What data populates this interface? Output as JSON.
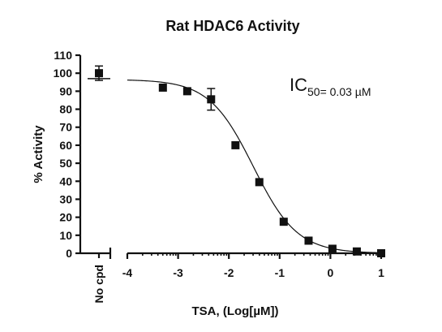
{
  "chart_data": {
    "type": "scatter",
    "title": "Rat HDAC6 Activity",
    "xlabel": "TSA, (Log[µM])",
    "ylabel": "% Activity",
    "xlim": [
      -4,
      1
    ],
    "ylim": [
      0,
      110
    ],
    "x_ticks": [
      "-4",
      "-3",
      "-2",
      "-1",
      "0",
      "1"
    ],
    "y_ticks": [
      "0",
      "10",
      "20",
      "30",
      "40",
      "50",
      "60",
      "70",
      "80",
      "90",
      "100",
      "110"
    ],
    "control": {
      "label": "No cpd",
      "value": 100,
      "error": 4,
      "mean_line": 97
    },
    "points": [
      {
        "x": -3.3,
        "y": 92,
        "error": 0
      },
      {
        "x": -2.82,
        "y": 90,
        "error": 0
      },
      {
        "x": -2.35,
        "y": 85.5,
        "error": 6
      },
      {
        "x": -1.87,
        "y": 60,
        "error": 0
      },
      {
        "x": -1.4,
        "y": 39.5,
        "error": 0
      },
      {
        "x": -0.92,
        "y": 17.5,
        "error": 0
      },
      {
        "x": -0.43,
        "y": 7,
        "error": 0
      },
      {
        "x": 0.04,
        "y": 2.5,
        "error": 0
      },
      {
        "x": 0.52,
        "y": 1,
        "error": 0
      },
      {
        "x": 1.0,
        "y": 0,
        "error": 0
      }
    ],
    "fit": {
      "bottom": 0,
      "top": 96.5,
      "log_ic50": -1.52,
      "hill_slope": -1,
      "x_range": [
        -4,
        1
      ]
    },
    "annotation": {
      "main": "IC",
      "subscript": "50= 0.03 µM"
    },
    "grid": false,
    "legend": "none"
  }
}
